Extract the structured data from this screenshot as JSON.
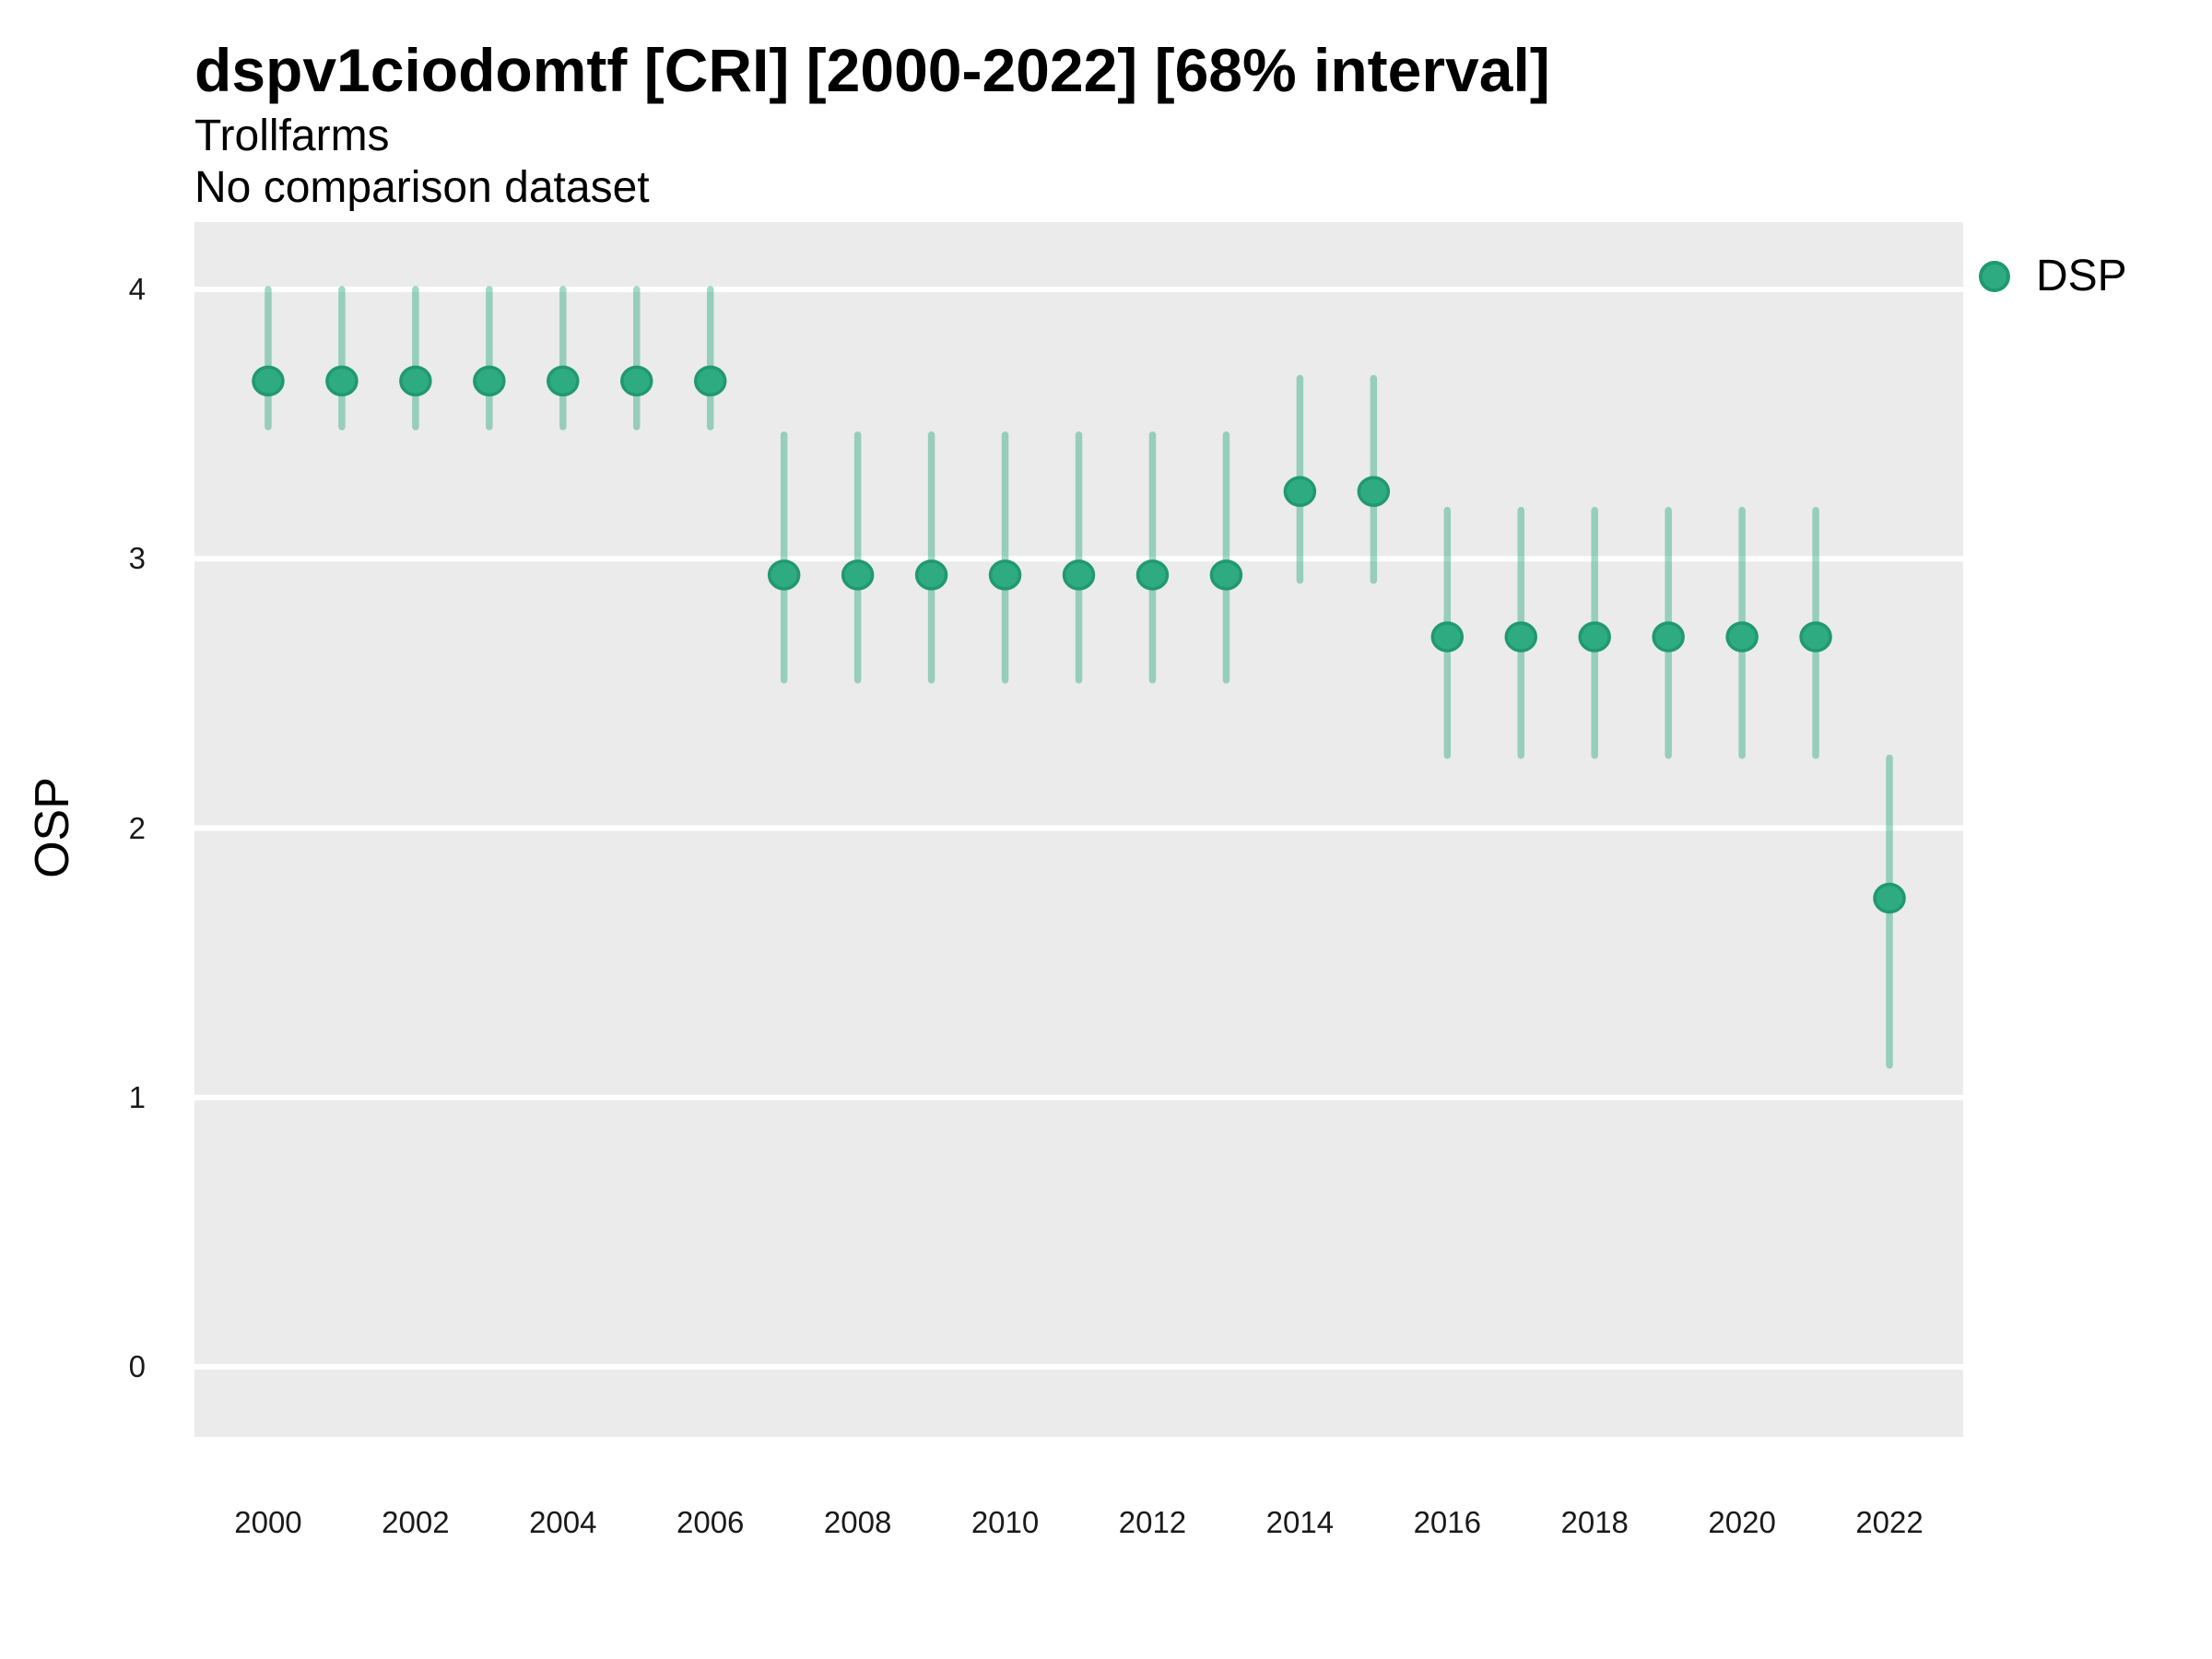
{
  "header": {
    "title": "dspv1ciodomtf [CRI] [2000-2022] [68% interval]",
    "subtitle": "Trollfarms",
    "note": "No comparison dataset"
  },
  "legend": {
    "label": "DSP"
  },
  "axes": {
    "y_label": "OSP",
    "y_tick_labels": [
      "4",
      "3",
      "2",
      "1",
      "0"
    ],
    "x_tick_labels": [
      "2000",
      "2002",
      "2004",
      "2006",
      "2008",
      "2010",
      "2012",
      "2014",
      "2016",
      "2018",
      "2020",
      "2022"
    ]
  },
  "colors": {
    "panel_background": "#EBEBEB",
    "gridline": "#FFFFFF",
    "point_fill": "#2EAB80",
    "point_stroke": "#219970",
    "errorbar": "rgba(46,171,128,0.45)",
    "text": "#000000",
    "tick_text": "#1a1a1a"
  },
  "chart_data": {
    "type": "scatter",
    "title": "dspv1ciodomtf [CRI] [2000-2022] [68% interval]",
    "subtitle": "Trollfarms",
    "note": "No comparison dataset",
    "xlabel": "",
    "ylabel": "OSP",
    "xlim": [
      1999,
      2023
    ],
    "ylim": [
      -0.26,
      4.25
    ],
    "y_gridline_values": [
      4,
      3,
      2,
      1,
      0
    ],
    "x_tick_years": [
      2000,
      2002,
      2004,
      2006,
      2008,
      2010,
      2012,
      2014,
      2016,
      2018,
      2020,
      2022
    ],
    "grid": "major horizontal white lines only, gray panel, no axis ticks, no panel border",
    "legend_position": "right-top",
    "interval_label": "68% interval",
    "series": [
      {
        "name": "DSP",
        "points": [
          {
            "year": 2000,
            "lo": 3.49,
            "mid": 3.66,
            "hi": 4.0
          },
          {
            "year": 2001,
            "lo": 3.49,
            "mid": 3.66,
            "hi": 4.0
          },
          {
            "year": 2002,
            "lo": 3.49,
            "mid": 3.66,
            "hi": 4.0
          },
          {
            "year": 2003,
            "lo": 3.49,
            "mid": 3.66,
            "hi": 4.0
          },
          {
            "year": 2004,
            "lo": 3.49,
            "mid": 3.66,
            "hi": 4.0
          },
          {
            "year": 2005,
            "lo": 3.49,
            "mid": 3.66,
            "hi": 4.0
          },
          {
            "year": 2006,
            "lo": 3.49,
            "mid": 3.66,
            "hi": 4.0
          },
          {
            "year": 2007,
            "lo": 2.55,
            "mid": 2.94,
            "hi": 3.46
          },
          {
            "year": 2008,
            "lo": 2.55,
            "mid": 2.94,
            "hi": 3.46
          },
          {
            "year": 2009,
            "lo": 2.55,
            "mid": 2.94,
            "hi": 3.46
          },
          {
            "year": 2010,
            "lo": 2.55,
            "mid": 2.94,
            "hi": 3.46
          },
          {
            "year": 2011,
            "lo": 2.55,
            "mid": 2.94,
            "hi": 3.46
          },
          {
            "year": 2012,
            "lo": 2.55,
            "mid": 2.94,
            "hi": 3.46
          },
          {
            "year": 2013,
            "lo": 2.55,
            "mid": 2.94,
            "hi": 3.46
          },
          {
            "year": 2014,
            "lo": 2.92,
            "mid": 3.25,
            "hi": 3.67
          },
          {
            "year": 2015,
            "lo": 2.92,
            "mid": 3.25,
            "hi": 3.67
          },
          {
            "year": 2016,
            "lo": 2.27,
            "mid": 2.71,
            "hi": 3.18
          },
          {
            "year": 2017,
            "lo": 2.27,
            "mid": 2.71,
            "hi": 3.18
          },
          {
            "year": 2018,
            "lo": 2.27,
            "mid": 2.71,
            "hi": 3.18
          },
          {
            "year": 2019,
            "lo": 2.27,
            "mid": 2.71,
            "hi": 3.18
          },
          {
            "year": 2020,
            "lo": 2.27,
            "mid": 2.71,
            "hi": 3.18
          },
          {
            "year": 2021,
            "lo": 2.27,
            "mid": 2.71,
            "hi": 3.18
          },
          {
            "year": 2022,
            "lo": 1.12,
            "mid": 1.74,
            "hi": 2.26
          }
        ]
      }
    ]
  }
}
